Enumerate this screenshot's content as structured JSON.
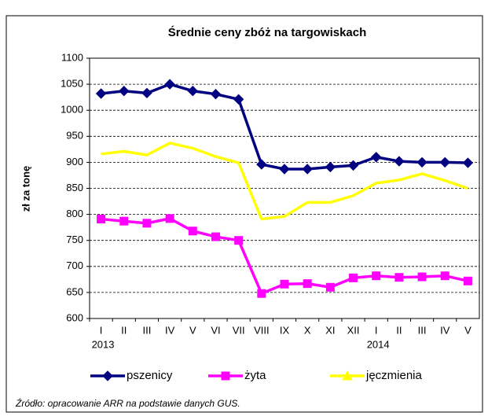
{
  "chart_data": {
    "type": "line",
    "title": "Średnie ceny zbóż na targowiskach",
    "y_label": "zł za tonę",
    "categories": [
      "I",
      "II",
      "III",
      "IV",
      "V",
      "VI",
      "VII",
      "VIII",
      "IX",
      "X",
      "XI",
      "XII",
      "I",
      "II",
      "III",
      "IV",
      "V"
    ],
    "year_labels": [
      "2013",
      "2014"
    ],
    "series": [
      {
        "name": "pszenicy",
        "color": "#000080",
        "marker": "diamond",
        "values": [
          1032,
          1037,
          1033,
          1050,
          1037,
          1031,
          1021,
          896,
          887,
          887,
          891,
          894,
          910,
          902,
          900,
          900,
          899
        ]
      },
      {
        "name": "żyta",
        "color": "#ff00ff",
        "marker": "square",
        "values": [
          791,
          787,
          783,
          792,
          768,
          757,
          750,
          648,
          666,
          667,
          660,
          678,
          682,
          679,
          680,
          682,
          672
        ]
      },
      {
        "name": "jęczmienia",
        "color": "#ffff00",
        "marker": "triangle",
        "values": [
          916,
          921,
          914,
          937,
          927,
          911,
          899,
          791,
          796,
          823,
          823,
          836,
          860,
          866,
          878,
          865,
          850
        ]
      }
    ],
    "ylim": [
      600,
      1100
    ],
    "yticks": [
      600,
      650,
      700,
      750,
      800,
      850,
      900,
      950,
      1000,
      1050,
      1100
    ],
    "grid": true,
    "source": "Źródło: opracowanie ARR na podstawie danych GUS."
  }
}
